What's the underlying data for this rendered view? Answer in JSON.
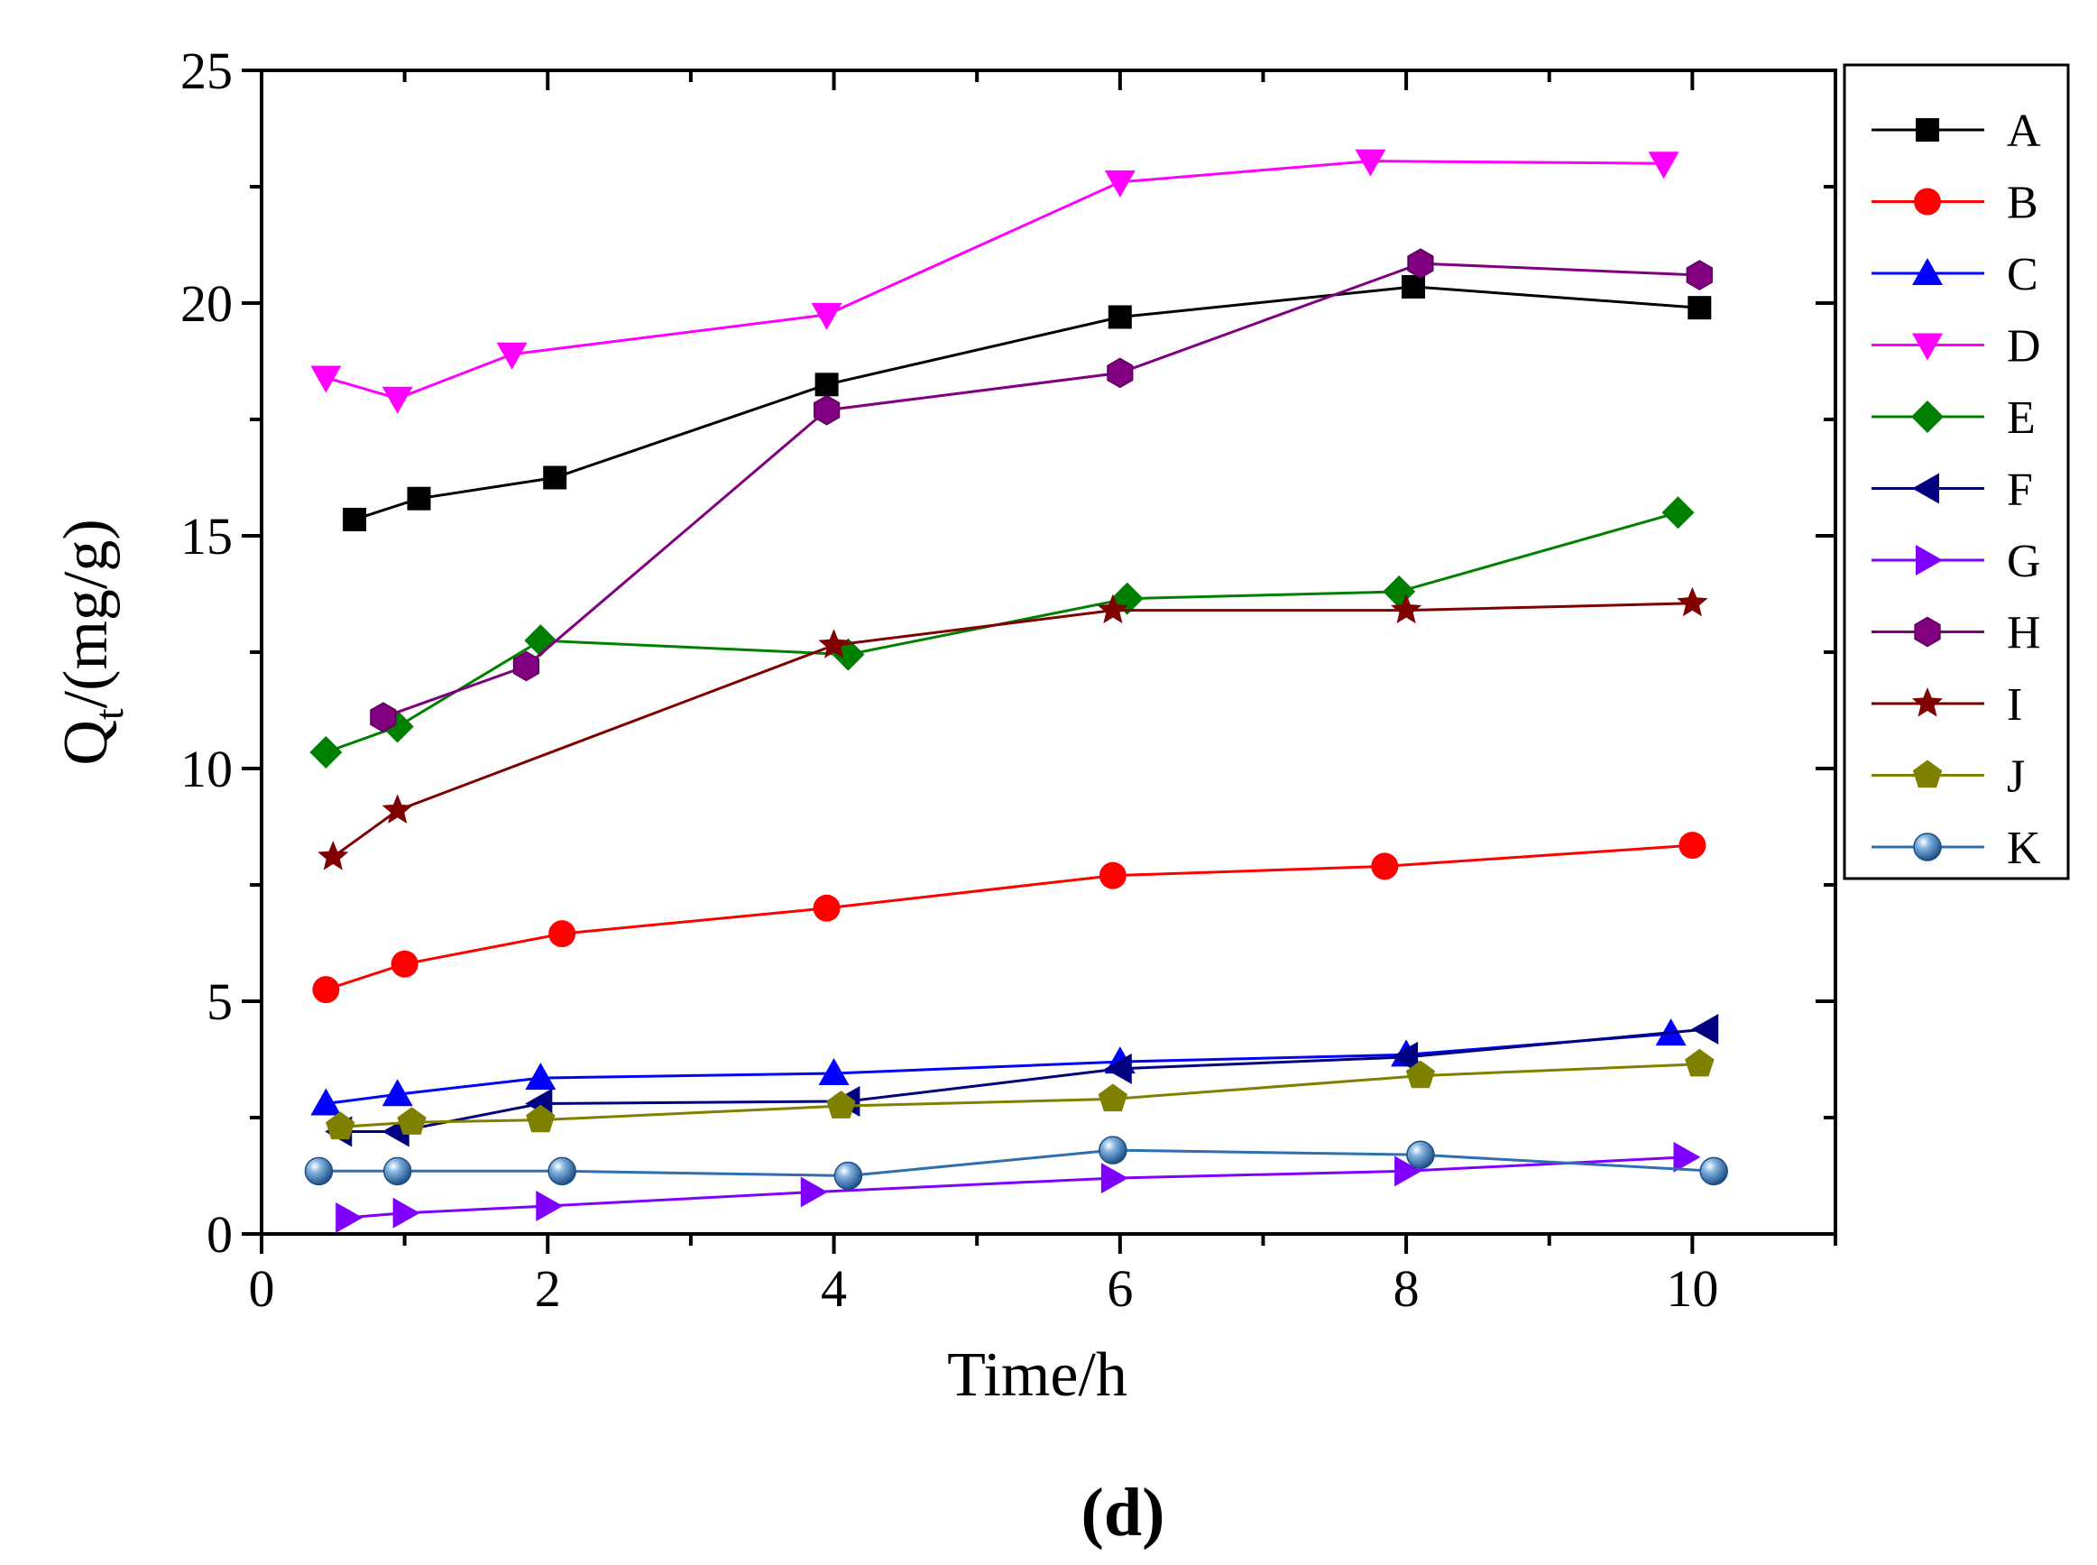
{
  "chart_data": {
    "type": "line",
    "panel_label": "(d)",
    "xlabel": "Time/h",
    "ylabel": {
      "main": "Q",
      "sub": "t",
      "suffix": "/(mg/g)"
    },
    "xlim": [
      0,
      11
    ],
    "ylim": [
      0,
      25
    ],
    "xticks": [
      0,
      2,
      4,
      6,
      8,
      10
    ],
    "yticks": [
      0,
      5,
      10,
      15,
      20,
      25
    ],
    "grid": false,
    "legend_position": "top-right-outside",
    "series": [
      {
        "name": "A",
        "marker": "square",
        "color": "#000000",
        "x": [
          0.65,
          1.1,
          2.05,
          3.95,
          6.0,
          8.05,
          10.05
        ],
        "y": [
          15.35,
          15.8,
          16.25,
          18.25,
          19.7,
          20.35,
          19.9
        ]
      },
      {
        "name": "B",
        "marker": "circle",
        "color": "#ff0000",
        "x": [
          0.45,
          1.0,
          2.1,
          3.95,
          5.95,
          7.85,
          10.0
        ],
        "y": [
          5.25,
          5.8,
          6.45,
          7.0,
          7.7,
          7.9,
          8.35
        ]
      },
      {
        "name": "C",
        "marker": "triangle-up",
        "color": "#0000ff",
        "x": [
          0.45,
          0.95,
          1.95,
          4.0,
          6.0,
          8.0,
          9.85
        ],
        "y": [
          2.8,
          3.0,
          3.35,
          3.45,
          3.7,
          3.85,
          4.3
        ]
      },
      {
        "name": "D",
        "marker": "triangle-down",
        "color": "#ff00ff",
        "x": [
          0.45,
          0.95,
          1.75,
          3.95,
          6.0,
          7.75,
          9.8
        ],
        "y": [
          18.4,
          17.95,
          18.9,
          19.75,
          22.6,
          23.05,
          23.0
        ]
      },
      {
        "name": "E",
        "marker": "diamond",
        "color": "#008000",
        "x": [
          0.45,
          0.95,
          1.95,
          4.1,
          6.05,
          7.95,
          9.9
        ],
        "y": [
          10.35,
          10.9,
          12.75,
          12.45,
          13.65,
          13.8,
          15.5
        ]
      },
      {
        "name": "F",
        "marker": "triangle-left",
        "color": "#000080",
        "x": [
          0.55,
          0.95,
          1.95,
          4.1,
          6.0,
          8.0,
          10.1
        ],
        "y": [
          2.2,
          2.2,
          2.8,
          2.85,
          3.55,
          3.8,
          4.4
        ]
      },
      {
        "name": "G",
        "marker": "triangle-right",
        "color": "#8000ff",
        "x": [
          0.6,
          1.0,
          2.0,
          3.85,
          5.95,
          8.0,
          9.95
        ],
        "y": [
          0.35,
          0.45,
          0.6,
          0.9,
          1.2,
          1.35,
          1.65
        ]
      },
      {
        "name": "H",
        "marker": "hexagon",
        "color": "#800080",
        "x": [
          0.85,
          1.85,
          3.95,
          6.0,
          8.1,
          10.05
        ],
        "y": [
          11.1,
          12.2,
          17.7,
          18.5,
          20.85,
          20.6
        ]
      },
      {
        "name": "I",
        "marker": "star",
        "color": "#800000",
        "x": [
          0.5,
          0.95,
          4.0,
          5.95,
          8.0,
          10.0
        ],
        "y": [
          8.1,
          9.1,
          12.65,
          13.4,
          13.4,
          13.55
        ]
      },
      {
        "name": "J",
        "marker": "pentagon",
        "color": "#808000",
        "x": [
          0.55,
          1.05,
          1.95,
          4.05,
          5.95,
          8.1,
          10.05
        ],
        "y": [
          2.3,
          2.4,
          2.45,
          2.75,
          2.9,
          3.4,
          3.65
        ]
      },
      {
        "name": "K",
        "marker": "sphere",
        "color": "#2f6faf",
        "x": [
          0.4,
          0.95,
          2.1,
          4.1,
          5.95,
          8.1,
          10.15
        ],
        "y": [
          1.35,
          1.35,
          1.35,
          1.25,
          1.8,
          1.7,
          1.35
        ]
      }
    ]
  }
}
